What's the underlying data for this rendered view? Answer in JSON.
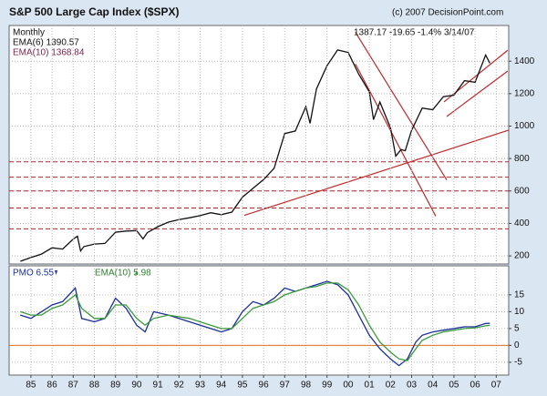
{
  "chart_data": [
    {
      "type": "line",
      "title": "S&P 500 Large Cap Index ($SPX)",
      "subtitle": "(c) 2007 DecisionPoint.com",
      "annotations": [
        "Monthly",
        "EMA(6) 1390.57",
        "EMA(10) 1368.84",
        "1387.17  -19.65  -1.4%  3/14/07"
      ],
      "xlim": [
        1984.47,
        2008.09
      ],
      "ylim": [
        150,
        1620
      ],
      "yticks": [
        200,
        400,
        600,
        800,
        1000,
        1200,
        1400
      ],
      "grid": true,
      "x": [
        1985.0,
        1985.5,
        1986.0,
        1986.5,
        1987.0,
        1987.5,
        1987.7,
        1987.85,
        1988.0,
        1988.5,
        1989.0,
        1989.5,
        1990.0,
        1990.5,
        1990.8,
        1991.0,
        1991.5,
        1992.0,
        1992.5,
        1993.0,
        1993.5,
        1994.0,
        1994.5,
        1995.0,
        1995.5,
        1996.0,
        1996.5,
        1997.0,
        1997.5,
        1998.0,
        1998.5,
        1998.7,
        1999.0,
        1999.5,
        2000.0,
        2000.5,
        2001.0,
        2001.5,
        2001.7,
        2002.0,
        2002.5,
        2002.75,
        2003.0,
        2003.2,
        2003.5,
        2004.0,
        2004.5,
        2005.0,
        2005.5,
        2006.0,
        2006.5,
        2007.0,
        2007.2
      ],
      "series": [
        {
          "name": "$SPX",
          "color": "#111111",
          "values": [
            167,
            190,
            211,
            250,
            242,
            304,
            321,
            230,
            257,
            273,
            277,
            346,
            353,
            356,
            305,
            343,
            380,
            408,
            424,
            435,
            448,
            466,
            454,
            470,
            562,
            616,
            670,
            740,
            954,
            970,
            1120,
            1017,
            1229,
            1372,
            1469,
            1454,
            1320,
            1211,
            1040,
            1148,
            990,
            815,
            855,
            848,
            974,
            1111,
            1101,
            1181,
            1191,
            1280,
            1270,
            1438,
            1387
          ]
        }
      ],
      "hlines": [
        780,
        685,
        600,
        495,
        367
      ],
      "trendlines": [
        {
          "x": [
            1995.59,
            2008.09
          ],
          "y": [
            450,
            975
          ]
        },
        {
          "x": [
            2000.84,
            2005.16
          ],
          "y": [
            1579,
            668
          ]
        },
        {
          "x": [
            2000.84,
            2004.64
          ],
          "y": [
            1383,
            445
          ]
        },
        {
          "x": [
            2005.03,
            2008.04
          ],
          "y": [
            1149,
            1467
          ]
        },
        {
          "x": [
            2005.16,
            2008.04
          ],
          "y": [
            1059,
            1339
          ]
        }
      ]
    },
    {
      "type": "line",
      "annotations": [
        "PMO  6.55",
        "EMA(10)  5.98"
      ],
      "xlim": [
        1984.47,
        2008.09
      ],
      "ylim": [
        -8.8,
        23.6
      ],
      "yticks": [
        -5,
        0,
        5,
        10,
        15
      ],
      "grid": true,
      "hlines": [
        0
      ],
      "xticks": [
        {
          "value": 1985.5,
          "label": "85"
        },
        {
          "value": 1986.5,
          "label": "86"
        },
        {
          "value": 1987.5,
          "label": "87"
        },
        {
          "value": 1988.5,
          "label": "88"
        },
        {
          "value": 1989.5,
          "label": "89"
        },
        {
          "value": 1990.5,
          "label": "90"
        },
        {
          "value": 1991.5,
          "label": "91"
        },
        {
          "value": 1992.5,
          "label": "92"
        },
        {
          "value": 1993.5,
          "label": "93"
        },
        {
          "value": 1994.5,
          "label": "94"
        },
        {
          "value": 1995.5,
          "label": "95"
        },
        {
          "value": 1996.5,
          "label": "96"
        },
        {
          "value": 1997.5,
          "label": "97"
        },
        {
          "value": 1998.5,
          "label": "98"
        },
        {
          "value": 1999.5,
          "label": "99"
        },
        {
          "value": 2000.5,
          "label": "00"
        },
        {
          "value": 2001.5,
          "label": "01"
        },
        {
          "value": 2002.5,
          "label": "02"
        },
        {
          "value": 2003.5,
          "label": "03"
        },
        {
          "value": 2004.5,
          "label": "04"
        },
        {
          "value": 2005.5,
          "label": "05"
        },
        {
          "value": 2006.5,
          "label": "06"
        },
        {
          "value": 2007.5,
          "label": "07"
        }
      ],
      "x": [
        1985.0,
        1985.5,
        1986.0,
        1986.5,
        1987.0,
        1987.6,
        1987.9,
        1988.5,
        1989.0,
        1989.5,
        1990.0,
        1990.5,
        1990.9,
        1991.3,
        1992.0,
        1993.0,
        1994.0,
        1994.5,
        1995.0,
        1995.5,
        1996.0,
        1996.5,
        1997.0,
        1997.5,
        1998.0,
        1998.5,
        1999.0,
        1999.5,
        2000.0,
        2000.5,
        2001.0,
        2001.5,
        2002.0,
        2002.5,
        2002.9,
        2003.3,
        2003.7,
        2004.0,
        2004.5,
        2005.0,
        2005.5,
        2006.0,
        2006.5,
        2007.0,
        2007.2
      ],
      "series": [
        {
          "name": "PMO",
          "color": "#1a2f9c",
          "values": [
            9,
            8,
            10,
            12,
            13,
            17,
            8,
            7,
            8,
            14,
            11,
            6,
            4,
            10,
            9,
            7,
            5,
            4,
            5,
            10,
            13,
            12,
            14,
            17,
            16,
            17,
            18,
            19,
            18,
            15,
            9,
            3,
            -1,
            -4,
            -6,
            -4,
            1,
            3,
            4,
            4.5,
            5,
            5.5,
            5.5,
            6.5,
            6.55
          ]
        },
        {
          "name": "EMA(10)",
          "color": "#3a9a3a",
          "values": [
            10,
            9,
            9,
            11,
            12,
            15,
            11,
            8,
            8,
            12,
            12,
            8,
            6,
            8,
            9,
            8,
            6,
            5,
            5,
            8,
            11,
            12,
            13,
            15,
            16,
            17,
            17.5,
            18.5,
            18.5,
            16.5,
            12,
            6,
            1,
            -2,
            -4,
            -4.5,
            -1,
            1.5,
            3,
            4,
            4.5,
            5,
            5.2,
            5.8,
            5.98
          ]
        }
      ]
    }
  ]
}
